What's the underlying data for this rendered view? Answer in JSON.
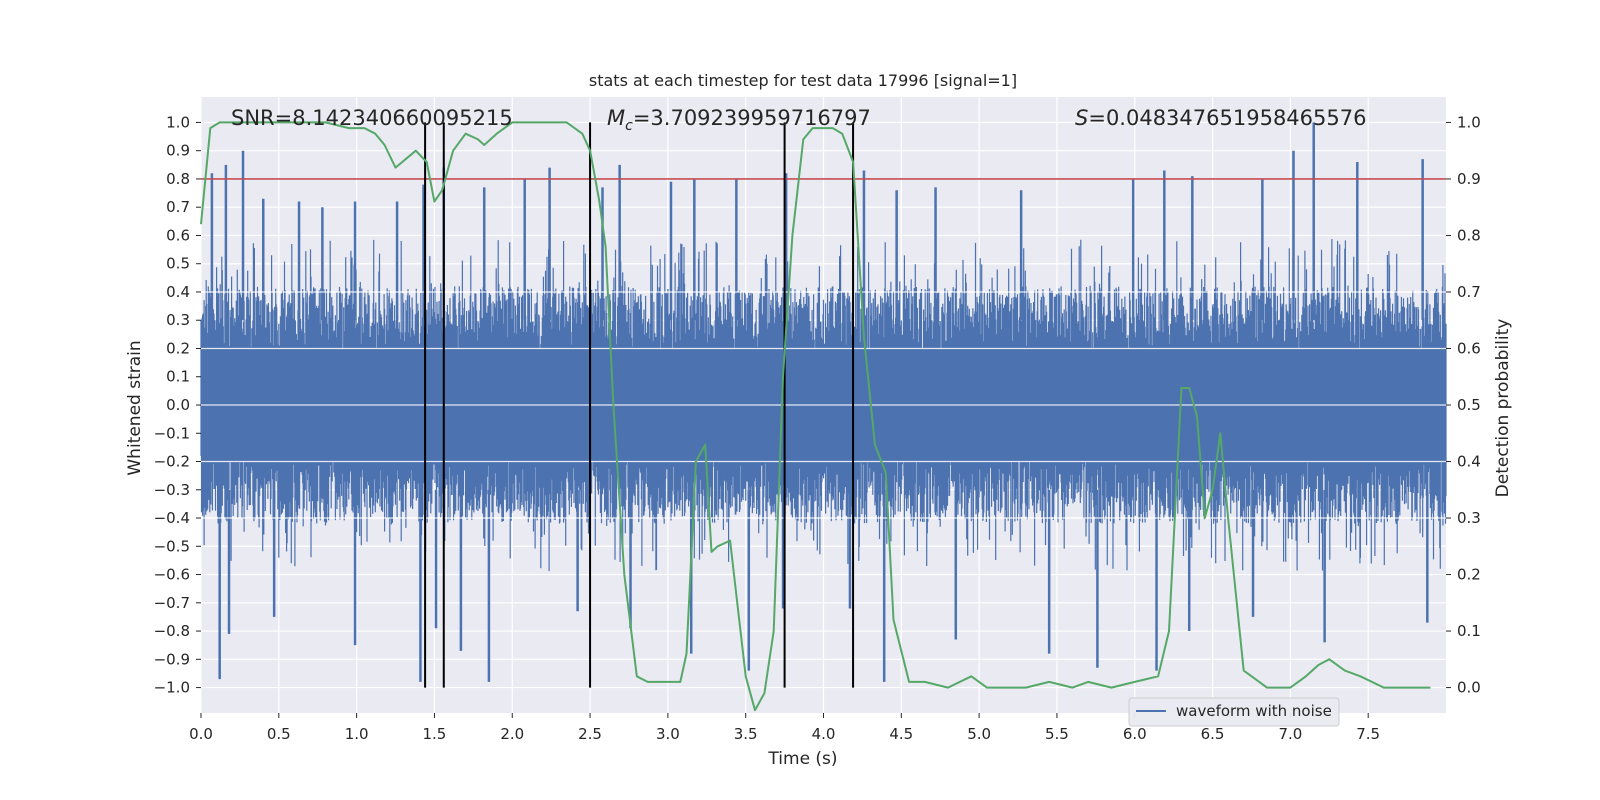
{
  "chart_data": {
    "type": "line",
    "title": "stats at each timestep for test data 17996 [signal=1]",
    "xlabel": "Time (s)",
    "ylabel": "Whitened strain",
    "y2label": "Detection probability",
    "xlim": [
      0.0,
      8.0
    ],
    "ylim": [
      -1.09,
      1.09
    ],
    "y2lim": [
      -0.045,
      1.045
    ],
    "xticks": [
      0.0,
      0.5,
      1.0,
      1.5,
      2.0,
      2.5,
      3.0,
      3.5,
      4.0,
      4.5,
      5.0,
      5.5,
      6.0,
      6.5,
      7.0,
      7.5
    ],
    "xtick_labels": [
      "0.0",
      "0.5",
      "1.0",
      "1.5",
      "2.0",
      "2.5",
      "3.0",
      "3.5",
      "4.0",
      "4.5",
      "5.0",
      "5.5",
      "6.0",
      "6.5",
      "7.0",
      "7.5"
    ],
    "yticks": [
      1.0,
      0.9,
      0.8,
      0.7,
      0.6,
      0.5,
      0.4,
      0.3,
      0.2,
      0.1,
      0.0,
      -0.1,
      -0.2,
      -0.3,
      -0.4,
      -0.5,
      -0.6,
      -0.7,
      -0.8,
      -0.9,
      -1.0
    ],
    "ytick_labels": [
      "1.0",
      "0.9",
      "0.8",
      "0.7",
      "0.6",
      "0.5",
      "0.4",
      "0.3",
      "0.2",
      "0.1",
      "0.0",
      "−0.1",
      "−0.2",
      "−0.3",
      "−0.4",
      "−0.5",
      "−0.6",
      "−0.7",
      "−0.8",
      "−0.9",
      "−1.0"
    ],
    "y2ticks": [
      1.0,
      0.9,
      0.8,
      0.7,
      0.6,
      0.5,
      0.4,
      0.3,
      0.2,
      0.1,
      0.0
    ],
    "y2tick_labels": [
      "1.0",
      "0.9",
      "0.8",
      "0.7",
      "0.6",
      "0.5",
      "0.4",
      "0.3",
      "0.2",
      "0.1",
      "0.0"
    ],
    "grid": true,
    "legend": {
      "position": "lower-right",
      "entries": [
        {
          "label": "waveform with noise",
          "color": "#4c72b0"
        }
      ]
    },
    "annotations": {
      "snr": "SNR=8.142340660095215",
      "mc_symbol": "M",
      "mc_sub": "c",
      "mc_value": "=3.709239959716797",
      "s_symbol": "S",
      "s_value": "=0.048347651958465576"
    },
    "threshold_line": {
      "y": 0.8,
      "color": "#c44e52"
    },
    "vertical_lines": [
      1.44,
      1.56,
      2.5,
      3.75,
      4.19
    ],
    "series": [
      {
        "name": "waveform with noise",
        "kind": "noise-band",
        "color": "#4c72b0",
        "axis": "left",
        "band_typical": 0.4,
        "peaks_upper": [
          [
            0.07,
            0.82
          ],
          [
            0.16,
            0.85
          ],
          [
            0.27,
            0.9
          ],
          [
            0.4,
            0.73
          ],
          [
            0.63,
            0.72
          ],
          [
            0.78,
            0.7
          ],
          [
            0.99,
            0.72
          ],
          [
            1.26,
            0.72
          ],
          [
            1.43,
            0.78
          ],
          [
            1.56,
            0.84
          ],
          [
            1.82,
            0.77
          ],
          [
            2.08,
            0.8
          ],
          [
            2.24,
            0.84
          ],
          [
            2.58,
            0.77
          ],
          [
            2.69,
            0.85
          ],
          [
            3.02,
            0.79
          ],
          [
            3.17,
            0.8
          ],
          [
            3.44,
            0.8
          ],
          [
            3.76,
            0.82
          ],
          [
            4.26,
            0.83
          ],
          [
            4.47,
            0.76
          ],
          [
            4.72,
            0.77
          ],
          [
            5.27,
            0.76
          ],
          [
            5.99,
            0.8
          ],
          [
            6.19,
            0.83
          ],
          [
            6.37,
            0.81
          ],
          [
            6.82,
            0.8
          ],
          [
            7.02,
            0.9
          ],
          [
            7.15,
            1.0
          ],
          [
            7.43,
            0.86
          ],
          [
            7.85,
            0.87
          ]
        ],
        "peaks_lower": [
          [
            0.12,
            -0.97
          ],
          [
            0.18,
            -0.81
          ],
          [
            0.47,
            -0.75
          ],
          [
            0.99,
            -0.85
          ],
          [
            1.41,
            -0.98
          ],
          [
            1.51,
            -0.79
          ],
          [
            1.67,
            -0.87
          ],
          [
            1.85,
            -0.98
          ],
          [
            2.42,
            -0.73
          ],
          [
            2.76,
            -0.79
          ],
          [
            3.15,
            -0.88
          ],
          [
            3.52,
            -0.94
          ],
          [
            3.74,
            -0.72
          ],
          [
            4.17,
            -0.72
          ],
          [
            4.39,
            -0.98
          ],
          [
            4.85,
            -0.83
          ],
          [
            5.45,
            -0.88
          ],
          [
            5.76,
            -0.93
          ],
          [
            6.14,
            -0.94
          ],
          [
            6.35,
            -0.8
          ],
          [
            6.76,
            -0.75
          ],
          [
            7.22,
            -0.84
          ],
          [
            7.88,
            -0.77
          ]
        ]
      },
      {
        "name": "Detection probability",
        "kind": "line",
        "color": "#55a868",
        "axis": "right",
        "x": [
          0.0,
          0.06,
          0.12,
          0.2,
          0.35,
          0.5,
          0.8,
          0.95,
          1.05,
          1.12,
          1.18,
          1.25,
          1.38,
          1.45,
          1.5,
          1.55,
          1.62,
          1.7,
          1.78,
          1.82,
          1.9,
          2.0,
          2.2,
          2.35,
          2.45,
          2.5,
          2.56,
          2.6,
          2.65,
          2.72,
          2.8,
          2.87,
          3.0,
          3.08,
          3.12,
          3.18,
          3.24,
          3.28,
          3.32,
          3.4,
          3.5,
          3.56,
          3.62,
          3.68,
          3.74,
          3.8,
          3.87,
          3.93,
          4.0,
          4.06,
          4.12,
          4.19,
          4.26,
          4.33,
          4.4,
          4.45,
          4.55,
          4.65,
          4.8,
          4.95,
          5.05,
          5.3,
          5.45,
          5.6,
          5.7,
          5.85,
          6.0,
          6.15,
          6.22,
          6.3,
          6.35,
          6.4,
          6.45,
          6.5,
          6.55,
          6.6,
          6.7,
          6.85,
          7.0,
          7.1,
          7.18,
          7.25,
          7.35,
          7.45,
          7.6,
          7.9
        ],
        "y": [
          0.82,
          0.99,
          1.0,
          1.0,
          1.0,
          1.0,
          1.0,
          0.99,
          0.99,
          0.98,
          0.96,
          0.92,
          0.95,
          0.93,
          0.86,
          0.88,
          0.95,
          0.98,
          0.97,
          0.96,
          0.98,
          1.0,
          1.0,
          1.0,
          0.98,
          0.95,
          0.86,
          0.78,
          0.5,
          0.2,
          0.02,
          0.01,
          0.01,
          0.01,
          0.06,
          0.4,
          0.43,
          0.24,
          0.25,
          0.26,
          0.02,
          -0.04,
          -0.01,
          0.1,
          0.55,
          0.8,
          0.97,
          0.99,
          0.99,
          0.99,
          0.98,
          0.93,
          0.62,
          0.43,
          0.38,
          0.12,
          0.01,
          0.01,
          0.0,
          0.02,
          0.0,
          0.0,
          0.01,
          0.0,
          0.01,
          0.0,
          0.01,
          0.02,
          0.1,
          0.53,
          0.53,
          0.48,
          0.3,
          0.35,
          0.45,
          0.3,
          0.03,
          0.0,
          0.0,
          0.02,
          0.04,
          0.05,
          0.03,
          0.02,
          0.0,
          0.0
        ]
      }
    ]
  }
}
